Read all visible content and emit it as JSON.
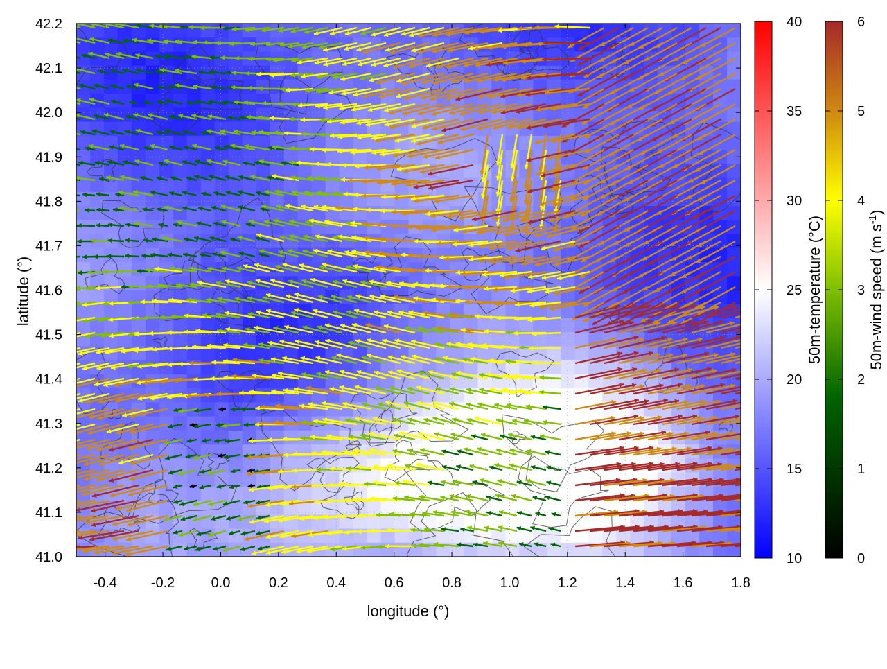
{
  "chart_data": {
    "type": "vector-field",
    "xlabel": "longitude (°)",
    "ylabel": "latitude (°)",
    "xlim": [
      -0.5,
      1.8
    ],
    "ylim": [
      41.0,
      42.2
    ],
    "xticks": [
      "-0.4",
      "-0.2",
      "0.0",
      "0.2",
      "0.4",
      "0.6",
      "0.8",
      "1.0",
      "1.2",
      "1.4",
      "1.6",
      "1.8"
    ],
    "yticks": [
      "41.0",
      "41.1",
      "41.2",
      "41.3",
      "41.4",
      "41.5",
      "41.6",
      "41.7",
      "41.8",
      "41.9",
      "42.0",
      "42.1",
      "42.2"
    ],
    "grid": true,
    "background_field": {
      "name": "50m-temperature",
      "label": "50m-temperature (°C)",
      "range": [
        10,
        40
      ],
      "ticks": [
        "10",
        "15",
        "20",
        "25",
        "30",
        "35",
        "40"
      ],
      "colormap": [
        "#0000ff",
        "#ffffff",
        "#ff0000"
      ]
    },
    "vector_field": {
      "name": "50m-wind speed",
      "label": "50m-wind speed (m s-1)",
      "label_main": "50m-wind speed (m s",
      "label_sup": "-1",
      "label_end": ")",
      "range": [
        0,
        6
      ],
      "ticks": [
        "0",
        "1",
        "2",
        "3",
        "4",
        "5",
        "6"
      ],
      "colormap": [
        "#000000",
        "#006400",
        "#7fbf00",
        "#ffff00",
        "#d08a10",
        "#a52a2a"
      ]
    },
    "contours": true
  }
}
